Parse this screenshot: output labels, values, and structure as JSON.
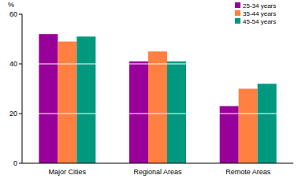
{
  "chart_data": {
    "type": "bar",
    "ylabel": "%",
    "categories": [
      "Major Cities",
      "Regional Areas",
      "Remote Areas"
    ],
    "series": [
      {
        "name": "25-34 years",
        "color": "#990099",
        "values": [
          52,
          41,
          23
        ]
      },
      {
        "name": "35-44 years",
        "color": "#ff8040",
        "values": [
          49,
          45,
          30
        ]
      },
      {
        "name": "45-54 years",
        "color": "#009980",
        "values": [
          51,
          41,
          32
        ]
      }
    ],
    "ylim": [
      0,
      60
    ],
    "yticks": [
      0,
      20,
      40,
      60
    ],
    "grid": true,
    "legend": "top-right"
  }
}
